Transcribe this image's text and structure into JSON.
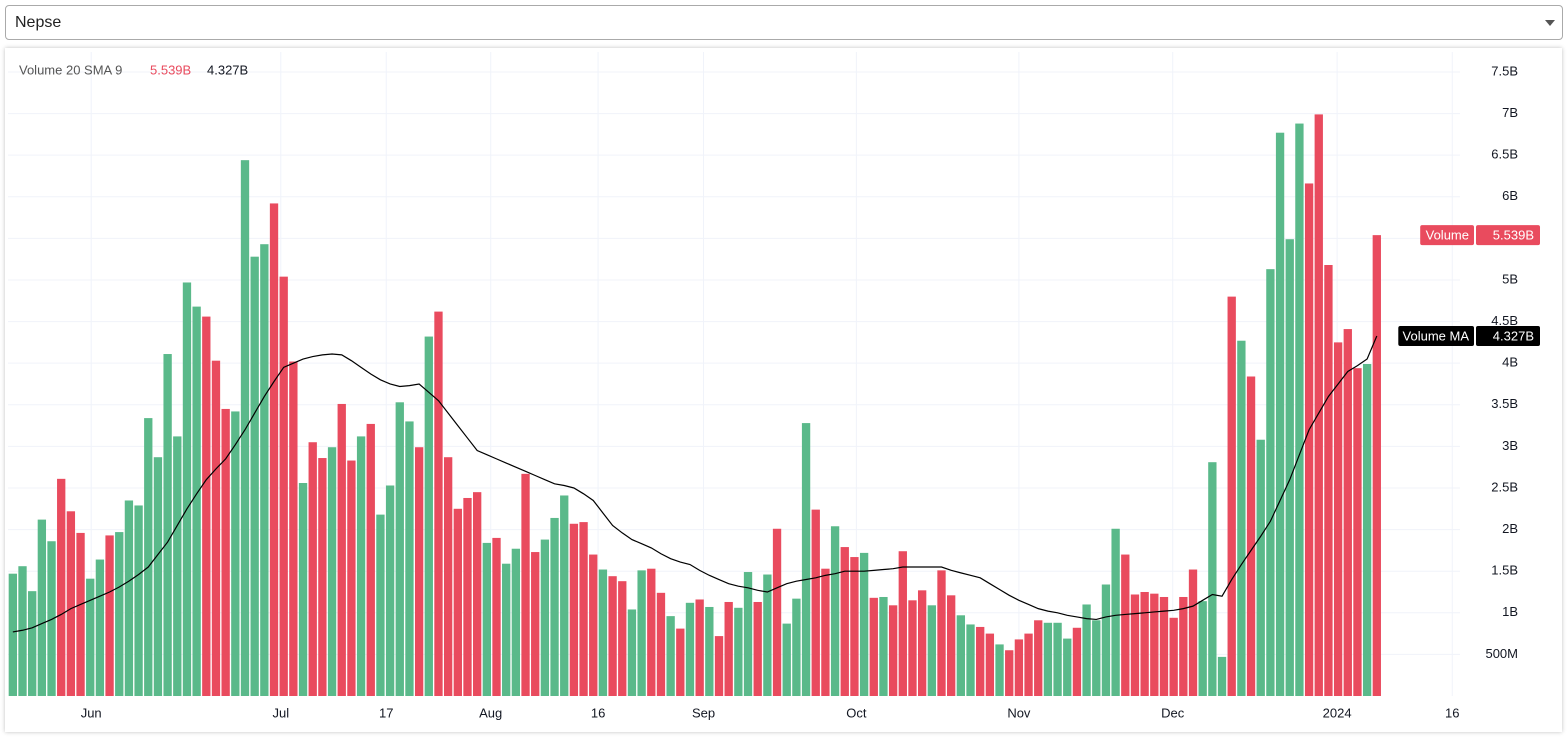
{
  "dropdown": {
    "value": "Nepse"
  },
  "chart_data": {
    "type": "bar",
    "indicator_label": "Volume 20 SMA 9",
    "x": [
      0,
      1,
      2,
      3,
      4,
      5,
      6,
      7,
      8,
      9,
      10,
      11,
      12,
      13,
      14,
      15,
      16,
      17,
      18,
      19,
      20,
      21,
      22,
      23,
      24,
      25,
      26,
      27,
      28,
      29,
      30,
      31,
      32,
      33,
      34,
      35,
      36,
      37,
      38,
      39,
      40,
      41,
      42,
      43,
      44,
      45,
      46,
      47,
      48,
      49,
      50,
      51,
      52,
      53,
      54,
      55,
      56,
      57,
      58,
      59,
      60,
      61,
      62,
      63,
      64,
      65,
      66,
      67,
      68,
      69,
      70,
      71,
      72,
      73,
      74,
      75,
      76,
      77,
      78,
      79,
      80,
      81,
      82,
      83,
      84,
      85,
      86,
      87,
      88,
      89,
      90,
      91,
      92,
      93,
      94,
      95,
      96,
      97,
      98,
      99,
      100,
      101,
      102,
      103,
      104,
      105,
      106,
      107,
      108,
      109,
      110,
      111,
      112,
      113,
      114,
      115,
      116,
      117,
      118,
      119,
      120,
      121,
      122,
      123,
      124,
      125,
      126,
      127,
      128,
      129,
      130,
      131,
      132,
      133,
      134,
      135,
      136,
      137,
      138,
      139,
      140,
      141
    ],
    "xlim": [
      -0.5,
      149.6
    ],
    "xticks": [
      {
        "value": 8.1,
        "label": "Jun"
      },
      {
        "value": 27.7,
        "label": "Jul"
      },
      {
        "value": 38.6,
        "label": "17"
      },
      {
        "value": 49.4,
        "label": "Aug"
      },
      {
        "value": 60.5,
        "label": "16"
      },
      {
        "value": 71.4,
        "label": "Sep"
      },
      {
        "value": 87.2,
        "label": "Oct"
      },
      {
        "value": 104.0,
        "label": "Nov"
      },
      {
        "value": 119.9,
        "label": "Dec"
      },
      {
        "value": 136.9,
        "label": "2024"
      },
      {
        "value": 148.8,
        "label": "16"
      }
    ],
    "ylim": [
      0,
      7.74
    ],
    "yticks": [
      {
        "value": 0.5,
        "label": "500M"
      },
      {
        "value": 1,
        "label": "1B"
      },
      {
        "value": 1.5,
        "label": "1.5B"
      },
      {
        "value": 2,
        "label": "2B"
      },
      {
        "value": 2.5,
        "label": "2.5B"
      },
      {
        "value": 3,
        "label": "3B"
      },
      {
        "value": 3.5,
        "label": "3.5B"
      },
      {
        "value": 4,
        "label": "4B"
      },
      {
        "value": 4.5,
        "label": "4.5B"
      },
      {
        "value": 5,
        "label": "5B"
      },
      {
        "value": 5.5,
        "label": "5.5B"
      },
      {
        "value": 6,
        "label": "6B"
      },
      {
        "value": 6.5,
        "label": "6.5B"
      },
      {
        "value": 7,
        "label": "7B"
      },
      {
        "value": 7.5,
        "label": "7.5B"
      }
    ],
    "grid": true,
    "series": [
      {
        "name": "Volume",
        "type": "bar",
        "last_value_label": "5.539B",
        "values": [
          1.47,
          1.56,
          1.26,
          2.12,
          1.86,
          2.61,
          2.22,
          1.96,
          1.41,
          1.64,
          1.93,
          1.97,
          2.35,
          2.29,
          3.34,
          2.87,
          4.11,
          3.12,
          4.97,
          4.68,
          4.56,
          4.03,
          3.45,
          3.42,
          6.44,
          5.28,
          5.43,
          5.92,
          5.04,
          4.02,
          2.56,
          3.05,
          2.86,
          2.99,
          3.51,
          2.83,
          3.12,
          3.27,
          2.18,
          2.53,
          3.53,
          3.3,
          2.99,
          4.32,
          4.62,
          2.87,
          2.25,
          2.38,
          2.45,
          1.84,
          1.9,
          1.59,
          1.77,
          2.67,
          1.73,
          1.88,
          2.14,
          2.41,
          2.07,
          2.09,
          1.7,
          1.52,
          1.44,
          1.38,
          1.04,
          1.51,
          1.53,
          1.24,
          0.96,
          0.81,
          1.12,
          1.16,
          1.07,
          0.72,
          1.13,
          1.06,
          1.49,
          1.13,
          1.46,
          2.01,
          0.87,
          1.17,
          3.28,
          2.24,
          1.53,
          2.04,
          1.79,
          1.67,
          1.72,
          1.18,
          1.19,
          1.09,
          1.74,
          1.15,
          1.27,
          1.09,
          1.51,
          1.21,
          0.97,
          0.86,
          0.83,
          0.75,
          0.62,
          0.55,
          0.68,
          0.75,
          0.91,
          0.88,
          0.88,
          0.69,
          0.82,
          1.1,
          0.91,
          1.34,
          2.01,
          1.7,
          1.22,
          1.25,
          1.23,
          1.19,
          0.94,
          1.19,
          1.52,
          1.14,
          2.81,
          0.47,
          4.8,
          4.27,
          3.84,
          3.08,
          5.13,
          6.77,
          5.49,
          6.88,
          6.16,
          6.99,
          5.18,
          4.25,
          4.41,
          3.94,
          3.99,
          5.539
        ],
        "colors": [
          "#5ab98a",
          "#5ab98a",
          "#5ab98a",
          "#5ab98a",
          "#5ab98a",
          "#e94b5e",
          "#e94b5e",
          "#e94b5e",
          "#5ab98a",
          "#5ab98a",
          "#e94b5e",
          "#5ab98a",
          "#5ab98a",
          "#5ab98a",
          "#5ab98a",
          "#5ab98a",
          "#5ab98a",
          "#5ab98a",
          "#5ab98a",
          "#5ab98a",
          "#e94b5e",
          "#e94b5e",
          "#e94b5e",
          "#5ab98a",
          "#5ab98a",
          "#5ab98a",
          "#5ab98a",
          "#e94b5e",
          "#e94b5e",
          "#e94b5e",
          "#5ab98a",
          "#e94b5e",
          "#e94b5e",
          "#5ab98a",
          "#e94b5e",
          "#e94b5e",
          "#5ab98a",
          "#e94b5e",
          "#5ab98a",
          "#5ab98a",
          "#5ab98a",
          "#5ab98a",
          "#e94b5e",
          "#5ab98a",
          "#e94b5e",
          "#e94b5e",
          "#e94b5e",
          "#e94b5e",
          "#e94b5e",
          "#5ab98a",
          "#e94b5e",
          "#5ab98a",
          "#5ab98a",
          "#e94b5e",
          "#e94b5e",
          "#5ab98a",
          "#5ab98a",
          "#5ab98a",
          "#e94b5e",
          "#e94b5e",
          "#e94b5e",
          "#5ab98a",
          "#e94b5e",
          "#e94b5e",
          "#5ab98a",
          "#5ab98a",
          "#e94b5e",
          "#e94b5e",
          "#5ab98a",
          "#e94b5e",
          "#5ab98a",
          "#e94b5e",
          "#5ab98a",
          "#e94b5e",
          "#e94b5e",
          "#5ab98a",
          "#5ab98a",
          "#e94b5e",
          "#5ab98a",
          "#e94b5e",
          "#5ab98a",
          "#5ab98a",
          "#5ab98a",
          "#e94b5e",
          "#e94b5e",
          "#5ab98a",
          "#e94b5e",
          "#e94b5e",
          "#5ab98a",
          "#e94b5e",
          "#5ab98a",
          "#e94b5e",
          "#e94b5e",
          "#e94b5e",
          "#e94b5e",
          "#5ab98a",
          "#e94b5e",
          "#e94b5e",
          "#5ab98a",
          "#5ab98a",
          "#e94b5e",
          "#e94b5e",
          "#5ab98a",
          "#e94b5e",
          "#e94b5e",
          "#e94b5e",
          "#e94b5e",
          "#5ab98a",
          "#5ab98a",
          "#5ab98a",
          "#e94b5e",
          "#5ab98a",
          "#5ab98a",
          "#5ab98a",
          "#5ab98a",
          "#e94b5e",
          "#e94b5e",
          "#e94b5e",
          "#e94b5e",
          "#e94b5e",
          "#e94b5e",
          "#e94b5e",
          "#e94b5e",
          "#5ab98a",
          "#5ab98a",
          "#5ab98a",
          "#e94b5e",
          "#5ab98a",
          "#e94b5e",
          "#5ab98a",
          "#5ab98a",
          "#5ab98a",
          "#5ab98a",
          "#5ab98a",
          "#e94b5e",
          "#e94b5e",
          "#e94b5e",
          "#e94b5e",
          "#e94b5e",
          "#e94b5e",
          "#5ab98a",
          "#e94b5e"
        ]
      },
      {
        "name": "Volume MA",
        "type": "line",
        "color": "#000000",
        "last_value_label": "4.327B",
        "values": [
          0.77,
          0.79,
          0.82,
          0.87,
          0.92,
          0.98,
          1.05,
          1.1,
          1.15,
          1.2,
          1.25,
          1.31,
          1.38,
          1.46,
          1.55,
          1.7,
          1.85,
          2.05,
          2.25,
          2.43,
          2.6,
          2.73,
          2.85,
          3.02,
          3.2,
          3.4,
          3.6,
          3.78,
          3.95,
          4.0,
          4.05,
          4.08,
          4.1,
          4.11,
          4.1,
          4.03,
          3.95,
          3.87,
          3.8,
          3.75,
          3.72,
          3.73,
          3.75,
          3.65,
          3.55,
          3.4,
          3.25,
          3.1,
          2.95,
          2.9,
          2.85,
          2.8,
          2.75,
          2.7,
          2.65,
          2.6,
          2.55,
          2.53,
          2.5,
          2.43,
          2.35,
          2.2,
          2.05,
          1.96,
          1.88,
          1.83,
          1.78,
          1.71,
          1.65,
          1.61,
          1.58,
          1.51,
          1.45,
          1.4,
          1.35,
          1.32,
          1.3,
          1.27,
          1.25,
          1.3,
          1.35,
          1.38,
          1.4,
          1.42,
          1.45,
          1.47,
          1.5,
          1.5,
          1.5,
          1.51,
          1.52,
          1.53,
          1.55,
          1.55,
          1.55,
          1.55,
          1.55,
          1.51,
          1.48,
          1.45,
          1.42,
          1.35,
          1.28,
          1.21,
          1.15,
          1.1,
          1.05,
          1.02,
          1.0,
          0.97,
          0.95,
          0.93,
          0.92,
          0.95,
          0.97,
          0.98,
          0.99,
          1.0,
          1.01,
          1.02,
          1.03,
          1.05,
          1.08,
          1.15,
          1.22,
          1.2,
          1.4,
          1.58,
          1.75,
          1.92,
          2.1,
          2.35,
          2.6,
          2.9,
          3.2,
          3.4,
          3.6,
          3.75,
          3.9,
          3.97,
          4.05,
          4.327
        ]
      }
    ]
  }
}
